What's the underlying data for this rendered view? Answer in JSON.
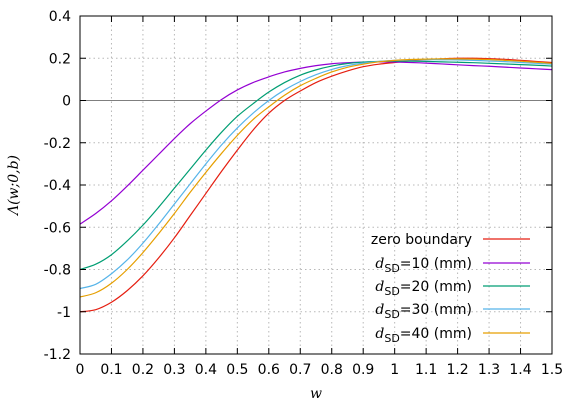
{
  "chart_data": {
    "type": "line",
    "xlabel": "w",
    "ylabel": "Λ(w;0,b)",
    "xlim": [
      0,
      1.5
    ],
    "ylim": [
      -1.2,
      0.4
    ],
    "xticks": [
      "0",
      "0.1",
      "0.2",
      "0.3",
      "0.4",
      "0.5",
      "0.6",
      "0.7",
      "0.8",
      "0.9",
      "1",
      "1.1",
      "1.2",
      "1.3",
      "1.4",
      "1.5"
    ],
    "yticks": [
      "0.4",
      "0.2",
      "0",
      "-0.2",
      "-0.4",
      "-0.6",
      "-0.8",
      "-1",
      "-1.2"
    ],
    "grid": true,
    "legend_position": "bottom-right",
    "x": [
      0,
      0.05,
      0.1,
      0.15,
      0.2,
      0.25,
      0.3,
      0.35,
      0.4,
      0.45,
      0.5,
      0.55,
      0.6,
      0.65,
      0.7,
      0.75,
      0.8,
      0.85,
      0.9,
      0.95,
      1.0,
      1.05,
      1.1,
      1.15,
      1.2,
      1.25,
      1.3,
      1.35,
      1.4,
      1.45,
      1.5
    ],
    "series": [
      {
        "label_main": "zero boundary",
        "label_sub": "",
        "label_rest": "",
        "color": "#e51e10",
        "values": [
          -1.0,
          -0.99,
          -0.955,
          -0.9,
          -0.83,
          -0.745,
          -0.65,
          -0.545,
          -0.44,
          -0.335,
          -0.235,
          -0.14,
          -0.06,
          0.0,
          0.045,
          0.085,
          0.115,
          0.14,
          0.16,
          0.172,
          0.18,
          0.188,
          0.193,
          0.197,
          0.2,
          0.2,
          0.198,
          0.195,
          0.19,
          0.185,
          0.18
        ]
      },
      {
        "label_main": "d",
        "label_sub": "SD",
        "label_rest": "=10 (mm)",
        "color": "#9400d3",
        "values": [
          -0.585,
          -0.535,
          -0.475,
          -0.405,
          -0.33,
          -0.255,
          -0.18,
          -0.11,
          -0.05,
          0.005,
          0.05,
          0.085,
          0.112,
          0.135,
          0.152,
          0.165,
          0.174,
          0.179,
          0.182,
          0.183,
          0.182,
          0.18,
          0.177,
          0.173,
          0.169,
          0.165,
          0.162,
          0.158,
          0.154,
          0.15,
          0.146
        ]
      },
      {
        "label_main": "d",
        "label_sub": "SD",
        "label_rest": "=20 (mm)",
        "color": "#009e73",
        "values": [
          -0.8,
          -0.775,
          -0.73,
          -0.665,
          -0.59,
          -0.505,
          -0.415,
          -0.325,
          -0.235,
          -0.15,
          -0.075,
          -0.015,
          0.04,
          0.085,
          0.12,
          0.145,
          0.163,
          0.175,
          0.182,
          0.185,
          0.186,
          0.186,
          0.185,
          0.183,
          0.181,
          0.179,
          0.176,
          0.173,
          0.17,
          0.167,
          0.163
        ]
      },
      {
        "label_main": "d",
        "label_sub": "SD",
        "label_rest": "=30 (mm)",
        "color": "#56b4e9",
        "values": [
          -0.89,
          -0.87,
          -0.82,
          -0.755,
          -0.675,
          -0.585,
          -0.49,
          -0.395,
          -0.3,
          -0.21,
          -0.13,
          -0.06,
          0.0,
          0.05,
          0.09,
          0.122,
          0.147,
          0.165,
          0.177,
          0.185,
          0.19,
          0.192,
          0.193,
          0.193,
          0.192,
          0.19,
          0.187,
          0.184,
          0.18,
          0.176,
          0.172
        ]
      },
      {
        "label_main": "d",
        "label_sub": "SD",
        "label_rest": "=40 (mm)",
        "color": "#e69f00",
        "values": [
          -0.93,
          -0.91,
          -0.865,
          -0.8,
          -0.72,
          -0.63,
          -0.535,
          -0.435,
          -0.34,
          -0.25,
          -0.165,
          -0.09,
          -0.03,
          0.025,
          0.07,
          0.105,
          0.135,
          0.157,
          0.172,
          0.183,
          0.19,
          0.194,
          0.196,
          0.197,
          0.197,
          0.196,
          0.194,
          0.19,
          0.186,
          0.181,
          0.176
        ]
      }
    ]
  }
}
